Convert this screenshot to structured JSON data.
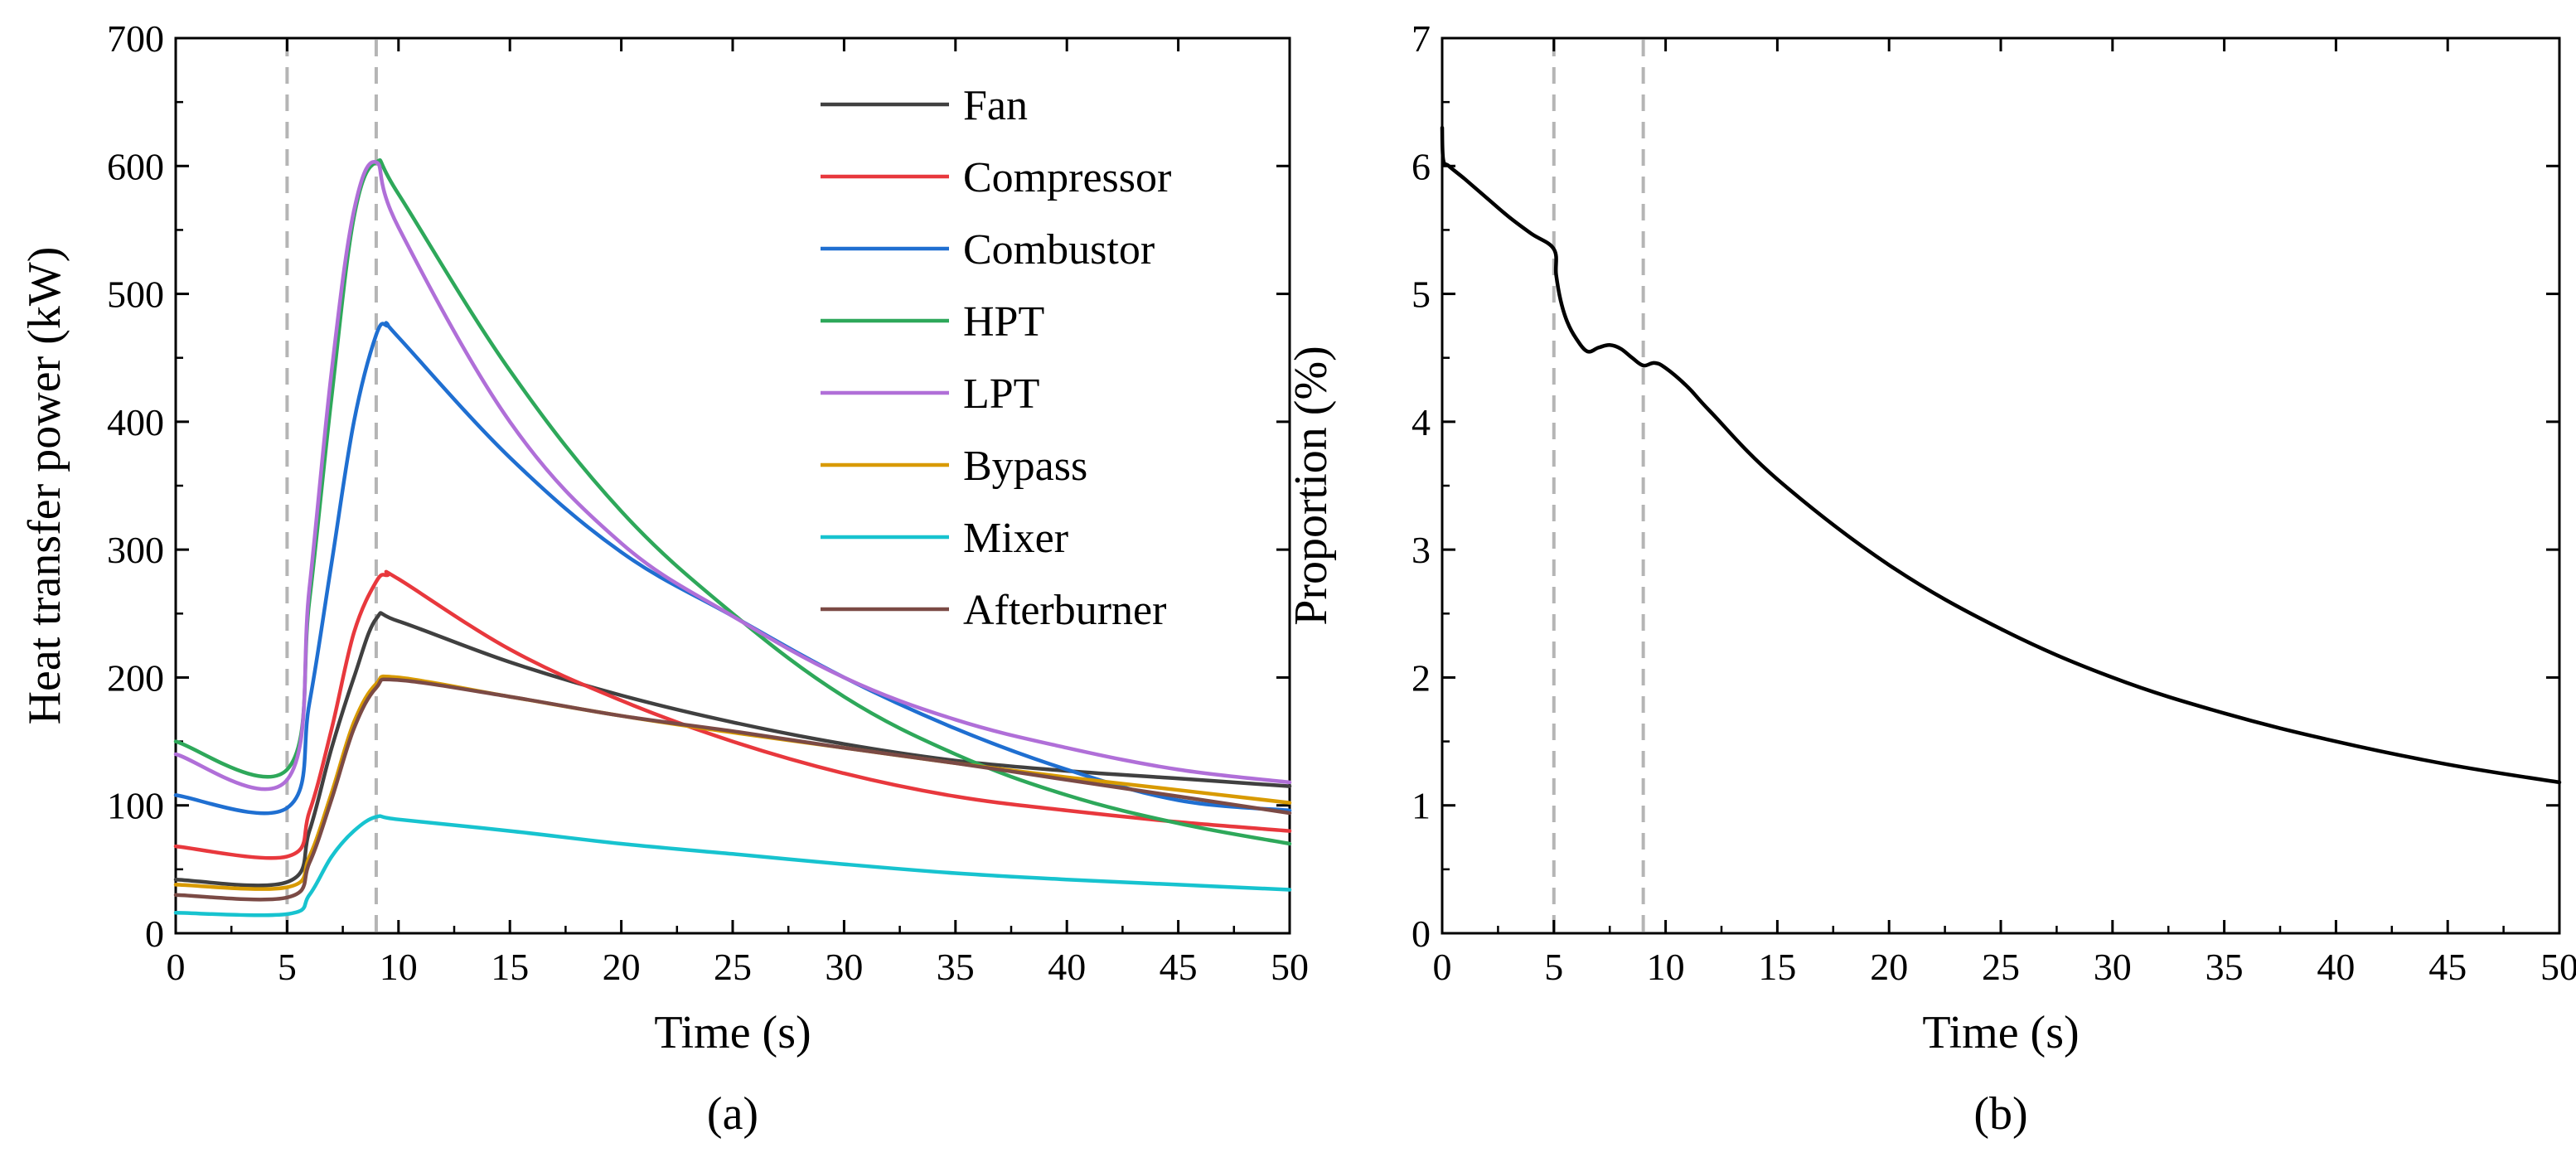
{
  "chart_data": [
    {
      "panel_label": "(a)",
      "type": "line",
      "title": "",
      "xlabel": "Time (s)",
      "ylabel": "Heat transfer power (kW)",
      "xlim": [
        0,
        50
      ],
      "ylim": [
        0,
        700
      ],
      "xticks": [
        0,
        5,
        10,
        15,
        20,
        25,
        30,
        35,
        40,
        45,
        50
      ],
      "yticks": [
        0,
        100,
        200,
        300,
        400,
        500,
        600,
        700
      ],
      "vlines": [
        5,
        9
      ],
      "grid": false,
      "legend_position": "top-right",
      "series": [
        {
          "name": "Fan",
          "color": "#404040",
          "x": [
            0,
            5,
            6,
            7,
            8,
            9,
            10,
            15,
            20,
            25,
            30,
            35,
            40,
            45,
            50
          ],
          "y": [
            42,
            40,
            80,
            145,
            200,
            246,
            244,
            212,
            186,
            165,
            148,
            135,
            127,
            121,
            115
          ]
        },
        {
          "name": "Compressor",
          "color": "#e8383d",
          "x": [
            0,
            5,
            6,
            7,
            8,
            9,
            9.5,
            10,
            15,
            20,
            25,
            30,
            35,
            40,
            45,
            50
          ],
          "y": [
            68,
            60,
            95,
            160,
            235,
            275,
            280,
            277,
            222,
            182,
            150,
            125,
            107,
            96,
            87,
            80
          ]
        },
        {
          "name": "Combustor",
          "color": "#1f6fd1",
          "x": [
            0,
            5,
            6,
            7,
            8,
            9,
            9.5,
            10,
            15,
            20,
            25,
            30,
            35,
            40,
            45,
            50
          ],
          "y": [
            108,
            98,
            180,
            290,
            400,
            468,
            475,
            466,
            372,
            298,
            248,
            200,
            160,
            128,
            104,
            96
          ]
        },
        {
          "name": "HPT",
          "color": "#2ea85a",
          "x": [
            0,
            5,
            6,
            7,
            8,
            9,
            10,
            15,
            20,
            25,
            30,
            35,
            40,
            45,
            50
          ],
          "y": [
            150,
            128,
            260,
            420,
            560,
            603,
            578,
            440,
            330,
            250,
            185,
            140,
            108,
            86,
            70
          ]
        },
        {
          "name": "LPT",
          "color": "#b06fd8",
          "x": [
            0,
            5,
            6,
            7,
            8,
            9,
            10,
            15,
            20,
            25,
            30,
            35,
            40,
            45,
            50
          ],
          "y": [
            140,
            120,
            270,
            440,
            565,
            603,
            552,
            400,
            305,
            248,
            200,
            167,
            145,
            128,
            118
          ]
        },
        {
          "name": "Bypass",
          "color": "#d89a00",
          "x": [
            0,
            5,
            6,
            7,
            8,
            9,
            10,
            15,
            20,
            25,
            30,
            35,
            40,
            45,
            50
          ],
          "y": [
            38,
            36,
            60,
            110,
            165,
            195,
            200,
            185,
            170,
            157,
            145,
            133,
            122,
            112,
            102
          ]
        },
        {
          "name": "Mixer",
          "color": "#17c3cf",
          "x": [
            0,
            5,
            6,
            7,
            8,
            9,
            10,
            15,
            20,
            25,
            30,
            35,
            40,
            45,
            50
          ],
          "y": [
            16,
            15,
            30,
            60,
            80,
            91,
            89,
            80,
            70,
            62,
            54,
            47,
            42,
            38,
            34
          ]
        },
        {
          "name": "Afterburner",
          "color": "#7b4a45",
          "x": [
            0,
            5,
            6,
            7,
            8,
            9,
            10,
            15,
            20,
            25,
            30,
            35,
            40,
            45,
            50
          ],
          "y": [
            30,
            28,
            55,
            105,
            160,
            192,
            198,
            185,
            170,
            158,
            145,
            133,
            120,
            107,
            94
          ]
        }
      ]
    },
    {
      "panel_label": "(b)",
      "type": "line",
      "title": "",
      "xlabel": "Time (s)",
      "ylabel": "Proportion (%)",
      "xlim": [
        0,
        50
      ],
      "ylim": [
        0,
        7
      ],
      "xticks": [
        0,
        5,
        10,
        15,
        20,
        25,
        30,
        35,
        40,
        45,
        50
      ],
      "yticks": [
        0,
        1,
        2,
        3,
        4,
        5,
        6,
        7
      ],
      "vlines": [
        5,
        9
      ],
      "grid": false,
      "series": [
        {
          "name": "Proportion",
          "color": "#000000",
          "x": [
            0,
            0.05,
            0.3,
            1,
            2,
            3,
            4,
            5,
            5.1,
            5.3,
            5.6,
            6,
            6.5,
            7,
            7.5,
            8,
            8.5,
            9,
            9.5,
            10,
            11,
            12,
            15,
            20,
            25,
            30,
            35,
            40,
            45,
            50
          ],
          "y": [
            6.3,
            6.05,
            6.0,
            5.9,
            5.75,
            5.6,
            5.47,
            5.35,
            5.15,
            4.95,
            4.78,
            4.65,
            4.55,
            4.58,
            4.6,
            4.57,
            4.5,
            4.44,
            4.46,
            4.42,
            4.27,
            4.08,
            3.55,
            2.88,
            2.38,
            2.0,
            1.72,
            1.5,
            1.32,
            1.18
          ]
        }
      ]
    }
  ]
}
